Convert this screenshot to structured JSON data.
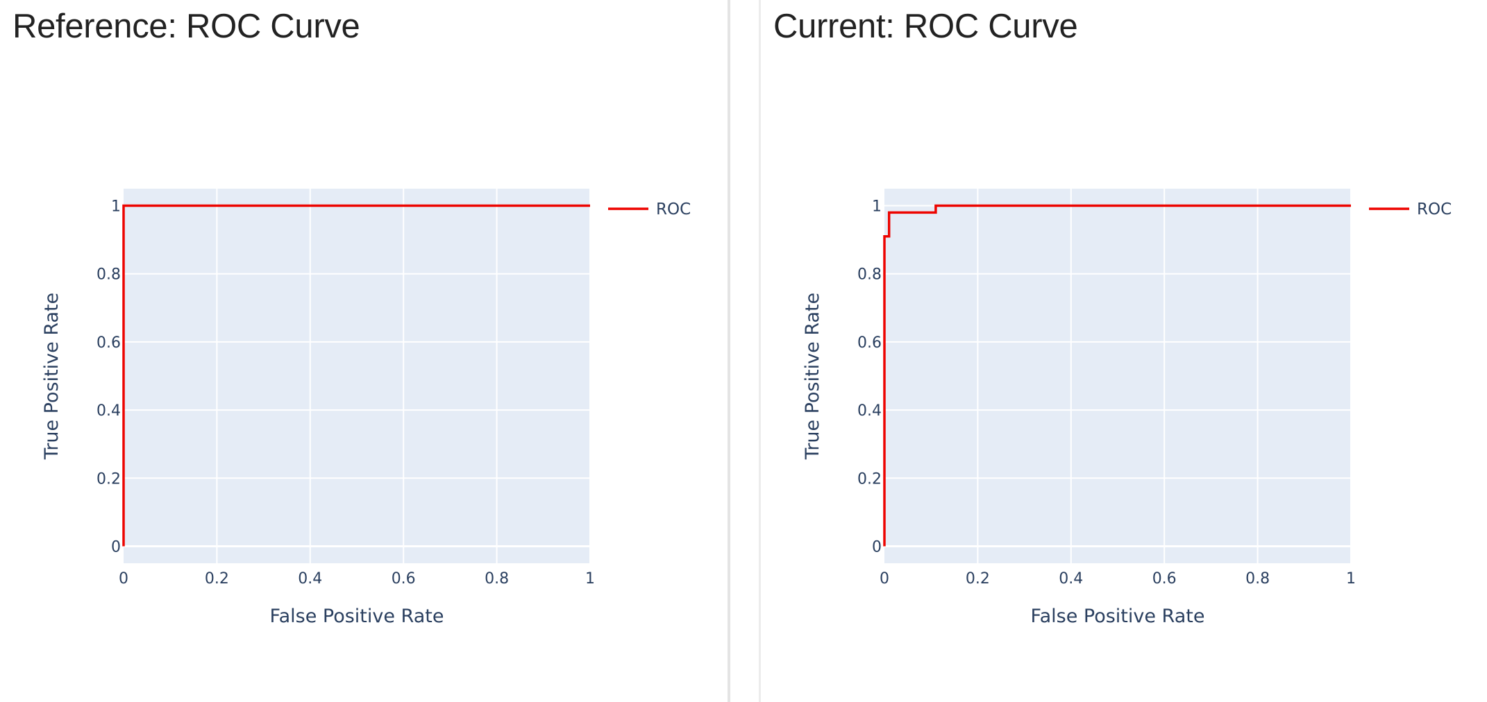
{
  "colors": {
    "plot_bg": "#e5ecf6",
    "grid": "#ffffff",
    "line": "#ed0400",
    "text": "#2a3f5f"
  },
  "panels": [
    {
      "title": "Reference: ROC Curve",
      "chart_data": {
        "type": "line",
        "title": "Reference: ROC Curve",
        "xlabel": "False Positive Rate",
        "ylabel": "True Positive Rate",
        "xlim": [
          0,
          1
        ],
        "ylim": [
          -0.05,
          1.05
        ],
        "x_ticks": [
          "0",
          "0.2",
          "0.4",
          "0.6",
          "0.8",
          "1"
        ],
        "y_ticks": [
          "0",
          "0.2",
          "0.4",
          "0.6",
          "0.8",
          "1"
        ],
        "grid": true,
        "legend_position": "right",
        "series": [
          {
            "name": "ROC",
            "color": "#ed0400",
            "x": [
              0,
              0,
              1
            ],
            "y": [
              0,
              1,
              1
            ]
          }
        ]
      }
    },
    {
      "title": "Current: ROC Curve",
      "chart_data": {
        "type": "line",
        "title": "Current: ROC Curve",
        "xlabel": "False Positive Rate",
        "ylabel": "True Positive Rate",
        "xlim": [
          0,
          1
        ],
        "ylim": [
          -0.05,
          1.05
        ],
        "x_ticks": [
          "0",
          "0.2",
          "0.4",
          "0.6",
          "0.8",
          "1"
        ],
        "y_ticks": [
          "0",
          "0.2",
          "0.4",
          "0.6",
          "0.8",
          "1"
        ],
        "grid": true,
        "legend_position": "right",
        "series": [
          {
            "name": "ROC",
            "color": "#ed0400",
            "x": [
              0,
              0,
              0.01,
              0.01,
              0.11,
              0.11,
              1
            ],
            "y": [
              0,
              0.91,
              0.91,
              0.98,
              0.98,
              1,
              1
            ]
          }
        ]
      }
    }
  ]
}
